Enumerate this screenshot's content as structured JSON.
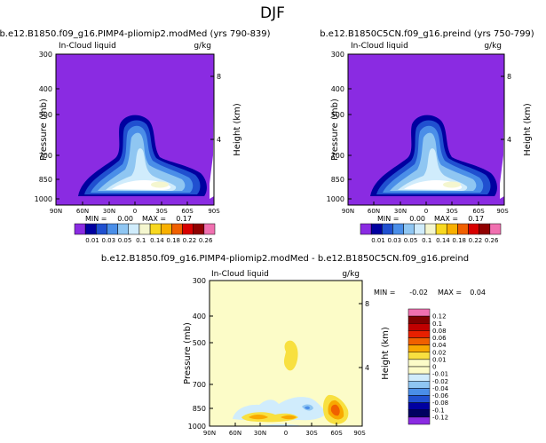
{
  "figure": {
    "season": "DJF",
    "colors": {
      "background": "#8a2be2"
    }
  },
  "chart_data": [
    {
      "type": "contour",
      "title": "b.e12.B1850.f09_g16.PIMP4-pliomip2.modMed (yrs 790-839)",
      "subtitle_left": "In-Cloud liquid",
      "subtitle_right": "g/kg",
      "ylabel": "Pressure (mb)",
      "ylabel_right": "Height (km)",
      "x_ticks": [
        "90N",
        "60N",
        "30N",
        "0",
        "30S",
        "60S",
        "90S"
      ],
      "y_ticks": [
        "300",
        "400",
        "500",
        "700",
        "850",
        "1000"
      ],
      "y_ticks_right": [
        "8",
        "4"
      ],
      "stats": {
        "min_label": "MIN =",
        "min_value": "0.00",
        "max_label": "MAX =",
        "max_value": "0.17"
      }
    },
    {
      "type": "contour",
      "title": "b.e12.B1850C5CN.f09_g16.preind (yrs 750-799)",
      "subtitle_left": "In-Cloud liquid",
      "subtitle_right": "g/kg",
      "ylabel": "Pressure (mb)",
      "ylabel_right": "Height (km)",
      "x_ticks": [
        "90N",
        "60N",
        "30N",
        "0",
        "30S",
        "60S",
        "90S"
      ],
      "y_ticks": [
        "300",
        "400",
        "500",
        "700",
        "850",
        "1000"
      ],
      "y_ticks_right": [
        "8",
        "4"
      ],
      "stats": {
        "min_label": "MIN =",
        "min_value": "0.00",
        "max_label": "MAX =",
        "max_value": "0.17"
      }
    },
    {
      "type": "contour",
      "title": "b.e12.B1850.f09_g16.PIMP4-pliomip2.modMed - b.e12.B1850C5CN.f09_g16.preind",
      "subtitle_left": "In-Cloud liquid",
      "subtitle_right": "g/kg",
      "ylabel": "Pressure (mb)",
      "ylabel_right": "Height (km)",
      "x_ticks": [
        "90N",
        "60N",
        "30N",
        "0",
        "30S",
        "60S",
        "90S"
      ],
      "y_ticks": [
        "300",
        "400",
        "500",
        "700",
        "850",
        "1000"
      ],
      "y_ticks_right": [
        "8",
        "4"
      ],
      "stats": {
        "min_label": "MIN =",
        "min_value": "-0.02",
        "max_label": "MAX =",
        "max_value": "0.04"
      }
    }
  ],
  "colorbar_abs": {
    "labels": [
      "0.01",
      "0.03",
      "0.05",
      "0.1",
      "0.14",
      "0.18",
      "0.22",
      "0.26"
    ],
    "colors": [
      "#8a2be2",
      "#0000a0",
      "#2050d0",
      "#4a8ee8",
      "#8fc6f2",
      "#d0ecfc",
      "#f4f6cf",
      "#f8d820",
      "#f8b000",
      "#f06000",
      "#d80000",
      "#900000",
      "#f070b0"
    ]
  },
  "colorbar_diff": {
    "labels": [
      "0.12",
      "0.1",
      "0.08",
      "0.06",
      "0.04",
      "0.02",
      "0.01",
      "0",
      "-0.01",
      "-0.02",
      "-0.04",
      "-0.06",
      "-0.08",
      "-0.1",
      "-0.12"
    ],
    "colors": [
      "#f070b0",
      "#800000",
      "#c00000",
      "#e82000",
      "#f06000",
      "#f8a800",
      "#f8e040",
      "#fcfcc8",
      "#fcfcc8",
      "#d0ecfc",
      "#8fc6f2",
      "#4a8ee8",
      "#2050d0",
      "#0000a0",
      "#000060",
      "#8a2be2"
    ]
  }
}
